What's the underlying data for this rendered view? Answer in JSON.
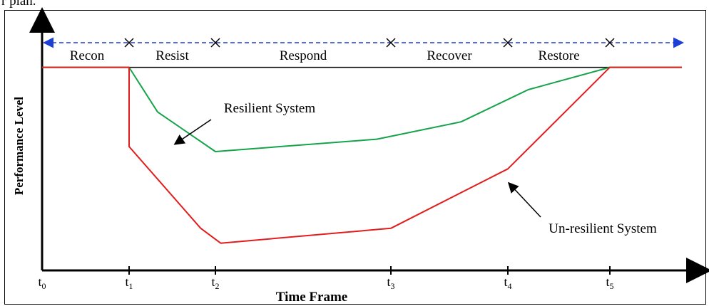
{
  "cropped_top_text": "r plan.",
  "chart_data": {
    "type": "line",
    "xlabel": "Time Frame",
    "ylabel": "Performance Level",
    "x_ticks": [
      {
        "base": "t",
        "sub": "0"
      },
      {
        "base": "t",
        "sub": "1"
      },
      {
        "base": "t",
        "sub": "2"
      },
      {
        "base": "t",
        "sub": "3"
      },
      {
        "base": "t",
        "sub": "4"
      },
      {
        "base": "t",
        "sub": "5"
      }
    ],
    "x_tick_values": [
      0,
      1,
      2,
      3,
      4,
      5
    ],
    "phases": [
      "Recon",
      "Resist",
      "Respond",
      "Recover",
      "Restore"
    ],
    "baseline_level": 0.82,
    "series": [
      {
        "name": "Resilient System",
        "color": "#16a34a",
        "x": [
          0,
          1,
          1.33,
          2,
          2.92,
          3.6,
          4.2,
          5,
          6.2
        ],
        "y": [
          0.82,
          0.82,
          0.64,
          0.48,
          0.53,
          0.6,
          0.73,
          0.82,
          0.82
        ]
      },
      {
        "name": "Un-resilient System",
        "color": "#e11d1d",
        "x": [
          0,
          1,
          1,
          1.83,
          2.03,
          3,
          4,
          5,
          6.2
        ],
        "y": [
          0.82,
          0.82,
          0.5,
          0.17,
          0.11,
          0.17,
          0.41,
          0.82,
          0.82
        ]
      }
    ],
    "xlim": [
      0,
      6.5
    ],
    "ylim": [
      0,
      1
    ],
    "colors": {
      "axis": "#000000",
      "phase_arrow": "#1d3fd6",
      "marker": "#000000"
    },
    "annotations": [
      {
        "text": "Resilient System",
        "target_series": 0
      },
      {
        "text": "Un-resilient System",
        "target_series": 1
      }
    ]
  }
}
